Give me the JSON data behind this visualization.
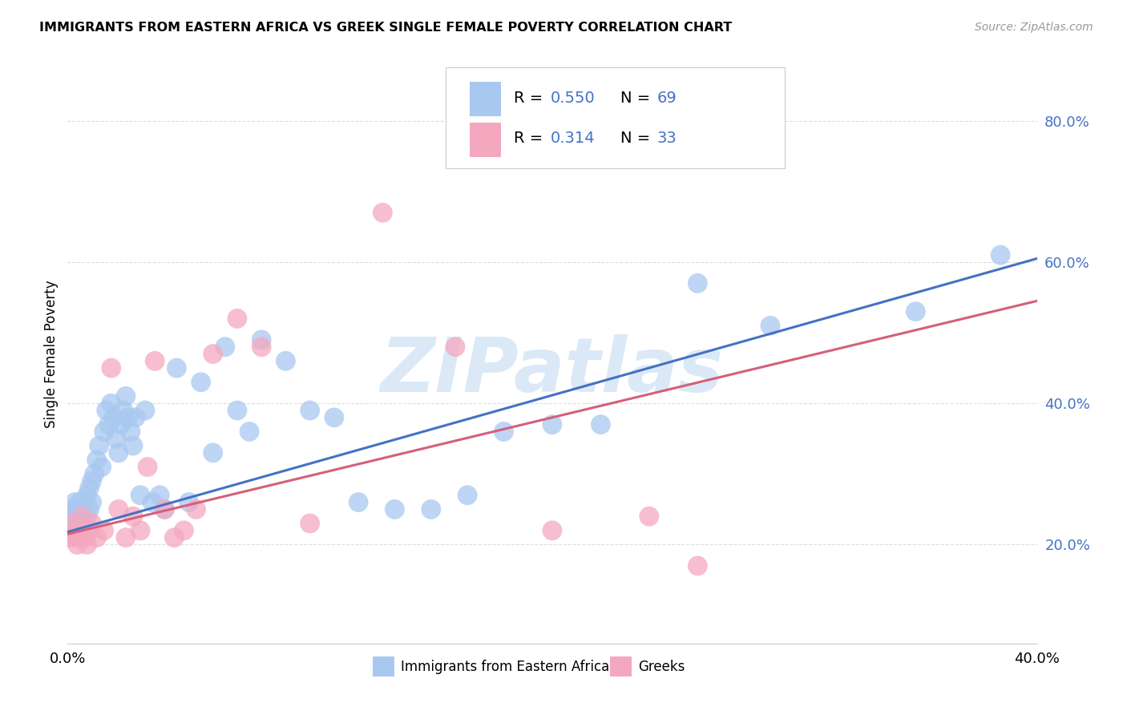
{
  "title": "IMMIGRANTS FROM EASTERN AFRICA VS GREEK SINGLE FEMALE POVERTY CORRELATION CHART",
  "source": "Source: ZipAtlas.com",
  "ylabel": "Single Female Poverty",
  "watermark": "ZIPatlas",
  "legend_label1": "Immigrants from Eastern Africa",
  "legend_label2": "Greeks",
  "R1": 0.55,
  "N1": 69,
  "R2": 0.314,
  "N2": 33,
  "color1": "#A8C8F0",
  "color2": "#F4A8C0",
  "line_color1": "#4472C4",
  "line_color2": "#D4607A",
  "axis_color": "#4472C4",
  "background_color": "#FFFFFF",
  "grid_color": "#DDDDDD",
  "xlim": [
    0.0,
    0.4
  ],
  "ylim": [
    0.06,
    0.88
  ],
  "yticks": [
    0.2,
    0.4,
    0.6,
    0.8
  ],
  "ytick_labels": [
    "20.0%",
    "40.0%",
    "60.0%",
    "80.0%"
  ],
  "xticks": [
    0.0,
    0.08,
    0.16,
    0.24,
    0.32,
    0.4
  ],
  "xtick_labels": [
    "0.0%",
    "",
    "",
    "",
    "",
    "40.0%"
  ],
  "blue_x": [
    0.001,
    0.001,
    0.002,
    0.002,
    0.003,
    0.003,
    0.003,
    0.004,
    0.004,
    0.004,
    0.005,
    0.005,
    0.005,
    0.006,
    0.006,
    0.006,
    0.007,
    0.007,
    0.008,
    0.008,
    0.009,
    0.009,
    0.01,
    0.01,
    0.011,
    0.012,
    0.013,
    0.014,
    0.015,
    0.016,
    0.017,
    0.018,
    0.019,
    0.02,
    0.021,
    0.022,
    0.023,
    0.024,
    0.025,
    0.026,
    0.027,
    0.028,
    0.03,
    0.032,
    0.035,
    0.038,
    0.04,
    0.045,
    0.05,
    0.055,
    0.06,
    0.065,
    0.07,
    0.075,
    0.08,
    0.09,
    0.1,
    0.11,
    0.12,
    0.135,
    0.15,
    0.165,
    0.18,
    0.2,
    0.22,
    0.26,
    0.29,
    0.35,
    0.385
  ],
  "blue_y": [
    0.24,
    0.22,
    0.25,
    0.23,
    0.26,
    0.22,
    0.24,
    0.25,
    0.23,
    0.22,
    0.24,
    0.26,
    0.23,
    0.25,
    0.22,
    0.24,
    0.26,
    0.23,
    0.27,
    0.24,
    0.28,
    0.25,
    0.29,
    0.26,
    0.3,
    0.32,
    0.34,
    0.31,
    0.36,
    0.39,
    0.37,
    0.4,
    0.38,
    0.35,
    0.33,
    0.37,
    0.39,
    0.41,
    0.38,
    0.36,
    0.34,
    0.38,
    0.27,
    0.39,
    0.26,
    0.27,
    0.25,
    0.45,
    0.26,
    0.43,
    0.33,
    0.48,
    0.39,
    0.36,
    0.49,
    0.46,
    0.39,
    0.38,
    0.26,
    0.25,
    0.25,
    0.27,
    0.36,
    0.37,
    0.37,
    0.57,
    0.51,
    0.53,
    0.61
  ],
  "pink_x": [
    0.001,
    0.001,
    0.002,
    0.003,
    0.004,
    0.005,
    0.006,
    0.007,
    0.008,
    0.009,
    0.01,
    0.012,
    0.015,
    0.018,
    0.021,
    0.024,
    0.027,
    0.03,
    0.033,
    0.036,
    0.04,
    0.044,
    0.048,
    0.053,
    0.06,
    0.07,
    0.08,
    0.1,
    0.13,
    0.16,
    0.2,
    0.24,
    0.26
  ],
  "pink_y": [
    0.22,
    0.21,
    0.23,
    0.21,
    0.2,
    0.22,
    0.24,
    0.21,
    0.2,
    0.22,
    0.23,
    0.21,
    0.22,
    0.45,
    0.25,
    0.21,
    0.24,
    0.22,
    0.31,
    0.46,
    0.25,
    0.21,
    0.22,
    0.25,
    0.47,
    0.52,
    0.48,
    0.23,
    0.67,
    0.48,
    0.22,
    0.24,
    0.17
  ],
  "line1_x0": 0.0,
  "line1_y0": 0.218,
  "line1_x1": 0.4,
  "line1_y1": 0.605,
  "line2_x0": 0.0,
  "line2_y0": 0.215,
  "line2_x1": 0.4,
  "line2_y1": 0.545
}
